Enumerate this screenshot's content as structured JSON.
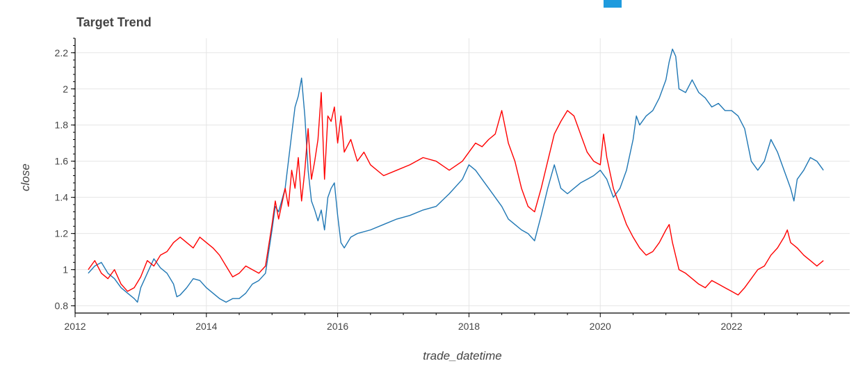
{
  "colors": {
    "background": "#ffffff",
    "toolbar_swatch": "#1f9bde",
    "grid": "#e5e5e5",
    "axis": "#000000",
    "text": "#444444"
  },
  "chart_data": {
    "type": "line",
    "title": "Target Trend",
    "xlabel": "trade_datetime",
    "ylabel": "close",
    "x_is_date": true,
    "xlim": [
      2012.0,
      2023.8
    ],
    "ylim": [
      0.76,
      2.28
    ],
    "x_ticks": [
      2012,
      2014,
      2016,
      2018,
      2020,
      2022
    ],
    "x_tick_labels": [
      "2012",
      "2014",
      "2016",
      "2018",
      "2020",
      "2022"
    ],
    "y_ticks": [
      0.8,
      1.0,
      1.2,
      1.4,
      1.6,
      1.8,
      2.0,
      2.2
    ],
    "y_tick_labels": [
      "0.8",
      "1",
      "1.2",
      "1.4",
      "1.6",
      "1.8",
      "2",
      "2.2"
    ],
    "grid": true,
    "legend": "none",
    "series": [
      {
        "color": "#1f77b4",
        "points": [
          [
            2012.2,
            0.98
          ],
          [
            2012.3,
            1.02
          ],
          [
            2012.4,
            1.04
          ],
          [
            2012.5,
            0.98
          ],
          [
            2012.6,
            0.95
          ],
          [
            2012.7,
            0.9
          ],
          [
            2012.8,
            0.87
          ],
          [
            2012.9,
            0.84
          ],
          [
            2012.95,
            0.82
          ],
          [
            2013.0,
            0.9
          ],
          [
            2013.1,
            0.98
          ],
          [
            2013.2,
            1.06
          ],
          [
            2013.3,
            1.01
          ],
          [
            2013.4,
            0.98
          ],
          [
            2013.5,
            0.92
          ],
          [
            2013.55,
            0.85
          ],
          [
            2013.6,
            0.86
          ],
          [
            2013.7,
            0.9
          ],
          [
            2013.8,
            0.95
          ],
          [
            2013.9,
            0.94
          ],
          [
            2014.0,
            0.9
          ],
          [
            2014.1,
            0.87
          ],
          [
            2014.2,
            0.84
          ],
          [
            2014.3,
            0.82
          ],
          [
            2014.4,
            0.84
          ],
          [
            2014.5,
            0.84
          ],
          [
            2014.6,
            0.87
          ],
          [
            2014.7,
            0.92
          ],
          [
            2014.8,
            0.94
          ],
          [
            2014.9,
            0.98
          ],
          [
            2015.0,
            1.22
          ],
          [
            2015.05,
            1.35
          ],
          [
            2015.1,
            1.32
          ],
          [
            2015.2,
            1.45
          ],
          [
            2015.25,
            1.6
          ],
          [
            2015.3,
            1.75
          ],
          [
            2015.35,
            1.9
          ],
          [
            2015.4,
            1.96
          ],
          [
            2015.45,
            2.06
          ],
          [
            2015.5,
            1.85
          ],
          [
            2015.55,
            1.55
          ],
          [
            2015.6,
            1.38
          ],
          [
            2015.65,
            1.33
          ],
          [
            2015.7,
            1.27
          ],
          [
            2015.75,
            1.33
          ],
          [
            2015.8,
            1.22
          ],
          [
            2015.85,
            1.4
          ],
          [
            2015.9,
            1.45
          ],
          [
            2015.95,
            1.48
          ],
          [
            2016.0,
            1.3
          ],
          [
            2016.05,
            1.15
          ],
          [
            2016.1,
            1.12
          ],
          [
            2016.2,
            1.18
          ],
          [
            2016.3,
            1.2
          ],
          [
            2016.5,
            1.22
          ],
          [
            2016.7,
            1.25
          ],
          [
            2016.9,
            1.28
          ],
          [
            2017.1,
            1.3
          ],
          [
            2017.3,
            1.33
          ],
          [
            2017.5,
            1.35
          ],
          [
            2017.7,
            1.42
          ],
          [
            2017.9,
            1.5
          ],
          [
            2018.0,
            1.58
          ],
          [
            2018.1,
            1.55
          ],
          [
            2018.2,
            1.5
          ],
          [
            2018.3,
            1.45
          ],
          [
            2018.5,
            1.35
          ],
          [
            2018.6,
            1.28
          ],
          [
            2018.7,
            1.25
          ],
          [
            2018.8,
            1.22
          ],
          [
            2018.9,
            1.2
          ],
          [
            2019.0,
            1.16
          ],
          [
            2019.1,
            1.3
          ],
          [
            2019.2,
            1.45
          ],
          [
            2019.3,
            1.58
          ],
          [
            2019.4,
            1.45
          ],
          [
            2019.5,
            1.42
          ],
          [
            2019.6,
            1.45
          ],
          [
            2019.7,
            1.48
          ],
          [
            2019.8,
            1.5
          ],
          [
            2019.9,
            1.52
          ],
          [
            2020.0,
            1.55
          ],
          [
            2020.1,
            1.5
          ],
          [
            2020.2,
            1.4
          ],
          [
            2020.3,
            1.45
          ],
          [
            2020.4,
            1.55
          ],
          [
            2020.5,
            1.72
          ],
          [
            2020.55,
            1.85
          ],
          [
            2020.6,
            1.8
          ],
          [
            2020.7,
            1.85
          ],
          [
            2020.8,
            1.88
          ],
          [
            2020.9,
            1.95
          ],
          [
            2021.0,
            2.05
          ],
          [
            2021.05,
            2.15
          ],
          [
            2021.1,
            2.22
          ],
          [
            2021.15,
            2.18
          ],
          [
            2021.2,
            2.0
          ],
          [
            2021.3,
            1.98
          ],
          [
            2021.4,
            2.05
          ],
          [
            2021.5,
            1.98
          ],
          [
            2021.6,
            1.95
          ],
          [
            2021.7,
            1.9
          ],
          [
            2021.8,
            1.92
          ],
          [
            2021.9,
            1.88
          ],
          [
            2022.0,
            1.88
          ],
          [
            2022.1,
            1.85
          ],
          [
            2022.2,
            1.78
          ],
          [
            2022.3,
            1.6
          ],
          [
            2022.4,
            1.55
          ],
          [
            2022.5,
            1.6
          ],
          [
            2022.6,
            1.72
          ],
          [
            2022.7,
            1.65
          ],
          [
            2022.8,
            1.55
          ],
          [
            2022.9,
            1.45
          ],
          [
            2022.95,
            1.38
          ],
          [
            2023.0,
            1.5
          ],
          [
            2023.1,
            1.55
          ],
          [
            2023.2,
            1.62
          ],
          [
            2023.3,
            1.6
          ],
          [
            2023.4,
            1.55
          ]
        ]
      },
      {
        "color": "#ff0000",
        "points": [
          [
            2012.2,
            1.0
          ],
          [
            2012.3,
            1.05
          ],
          [
            2012.4,
            0.98
          ],
          [
            2012.5,
            0.95
          ],
          [
            2012.6,
            1.0
          ],
          [
            2012.7,
            0.92
          ],
          [
            2012.8,
            0.88
          ],
          [
            2012.9,
            0.9
          ],
          [
            2013.0,
            0.96
          ],
          [
            2013.1,
            1.05
          ],
          [
            2013.2,
            1.02
          ],
          [
            2013.3,
            1.08
          ],
          [
            2013.4,
            1.1
          ],
          [
            2013.5,
            1.15
          ],
          [
            2013.6,
            1.18
          ],
          [
            2013.7,
            1.15
          ],
          [
            2013.8,
            1.12
          ],
          [
            2013.9,
            1.18
          ],
          [
            2014.0,
            1.15
          ],
          [
            2014.1,
            1.12
          ],
          [
            2014.2,
            1.08
          ],
          [
            2014.3,
            1.02
          ],
          [
            2014.4,
            0.96
          ],
          [
            2014.5,
            0.98
          ],
          [
            2014.6,
            1.02
          ],
          [
            2014.7,
            1.0
          ],
          [
            2014.8,
            0.98
          ],
          [
            2014.9,
            1.02
          ],
          [
            2015.0,
            1.25
          ],
          [
            2015.05,
            1.38
          ],
          [
            2015.1,
            1.28
          ],
          [
            2015.2,
            1.45
          ],
          [
            2015.25,
            1.35
          ],
          [
            2015.3,
            1.55
          ],
          [
            2015.35,
            1.45
          ],
          [
            2015.4,
            1.62
          ],
          [
            2015.45,
            1.38
          ],
          [
            2015.5,
            1.55
          ],
          [
            2015.55,
            1.78
          ],
          [
            2015.6,
            1.5
          ],
          [
            2015.65,
            1.6
          ],
          [
            2015.7,
            1.72
          ],
          [
            2015.75,
            1.98
          ],
          [
            2015.8,
            1.5
          ],
          [
            2015.85,
            1.85
          ],
          [
            2015.9,
            1.82
          ],
          [
            2015.95,
            1.9
          ],
          [
            2016.0,
            1.7
          ],
          [
            2016.05,
            1.85
          ],
          [
            2016.1,
            1.65
          ],
          [
            2016.2,
            1.72
          ],
          [
            2016.3,
            1.6
          ],
          [
            2016.4,
            1.65
          ],
          [
            2016.5,
            1.58
          ],
          [
            2016.7,
            1.52
          ],
          [
            2016.9,
            1.55
          ],
          [
            2017.1,
            1.58
          ],
          [
            2017.3,
            1.62
          ],
          [
            2017.5,
            1.6
          ],
          [
            2017.7,
            1.55
          ],
          [
            2017.9,
            1.6
          ],
          [
            2018.0,
            1.65
          ],
          [
            2018.1,
            1.7
          ],
          [
            2018.2,
            1.68
          ],
          [
            2018.3,
            1.72
          ],
          [
            2018.4,
            1.75
          ],
          [
            2018.5,
            1.88
          ],
          [
            2018.6,
            1.7
          ],
          [
            2018.7,
            1.6
          ],
          [
            2018.8,
            1.45
          ],
          [
            2018.9,
            1.35
          ],
          [
            2019.0,
            1.32
          ],
          [
            2019.1,
            1.45
          ],
          [
            2019.2,
            1.6
          ],
          [
            2019.3,
            1.75
          ],
          [
            2019.4,
            1.82
          ],
          [
            2019.5,
            1.88
          ],
          [
            2019.6,
            1.85
          ],
          [
            2019.7,
            1.75
          ],
          [
            2019.8,
            1.65
          ],
          [
            2019.9,
            1.6
          ],
          [
            2020.0,
            1.58
          ],
          [
            2020.05,
            1.75
          ],
          [
            2020.1,
            1.62
          ],
          [
            2020.2,
            1.45
          ],
          [
            2020.3,
            1.35
          ],
          [
            2020.4,
            1.25
          ],
          [
            2020.5,
            1.18
          ],
          [
            2020.6,
            1.12
          ],
          [
            2020.7,
            1.08
          ],
          [
            2020.8,
            1.1
          ],
          [
            2020.9,
            1.15
          ],
          [
            2021.0,
            1.22
          ],
          [
            2021.05,
            1.25
          ],
          [
            2021.1,
            1.15
          ],
          [
            2021.2,
            1.0
          ],
          [
            2021.3,
            0.98
          ],
          [
            2021.4,
            0.95
          ],
          [
            2021.5,
            0.92
          ],
          [
            2021.6,
            0.9
          ],
          [
            2021.7,
            0.94
          ],
          [
            2021.8,
            0.92
          ],
          [
            2021.9,
            0.9
          ],
          [
            2022.0,
            0.88
          ],
          [
            2022.1,
            0.86
          ],
          [
            2022.2,
            0.9
          ],
          [
            2022.3,
            0.95
          ],
          [
            2022.4,
            1.0
          ],
          [
            2022.5,
            1.02
          ],
          [
            2022.6,
            1.08
          ],
          [
            2022.7,
            1.12
          ],
          [
            2022.8,
            1.18
          ],
          [
            2022.85,
            1.22
          ],
          [
            2022.9,
            1.15
          ],
          [
            2023.0,
            1.12
          ],
          [
            2023.1,
            1.08
          ],
          [
            2023.2,
            1.05
          ],
          [
            2023.3,
            1.02
          ],
          [
            2023.4,
            1.05
          ]
        ]
      }
    ]
  }
}
